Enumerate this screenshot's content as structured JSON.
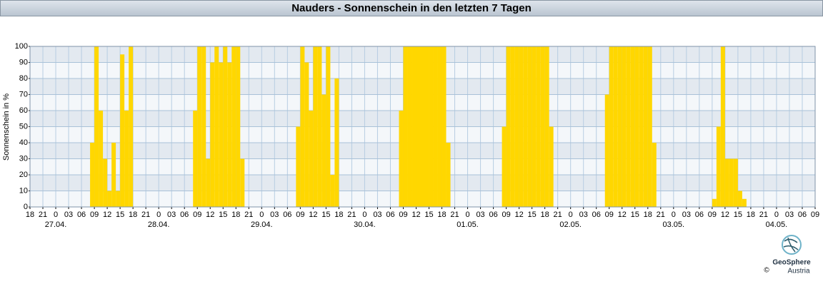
{
  "chart_data": {
    "type": "bar",
    "title": "Nauders - Sonnenschein in den letzten 7 Tagen",
    "y_label": "Sonnenschein in %",
    "x": [
      14,
      15,
      16,
      17,
      18,
      19,
      20,
      21,
      22,
      23,
      38,
      39,
      40,
      41,
      42,
      43,
      44,
      45,
      46,
      47,
      48,
      49,
      62,
      63,
      64,
      65,
      66,
      67,
      68,
      69,
      70,
      71,
      86,
      87,
      88,
      89,
      90,
      91,
      92,
      93,
      94,
      95,
      96,
      97,
      110,
      111,
      112,
      113,
      114,
      115,
      116,
      117,
      118,
      119,
      120,
      121,
      134,
      135,
      136,
      137,
      138,
      139,
      140,
      141,
      142,
      143,
      144,
      145,
      159,
      160,
      161,
      162,
      163,
      164,
      165,
      166
    ],
    "values": [
      40,
      100,
      60,
      30,
      10,
      40,
      10,
      95,
      60,
      100,
      60,
      100,
      100,
      30,
      90,
      100,
      90,
      100,
      90,
      100,
      100,
      30,
      50,
      100,
      90,
      60,
      100,
      100,
      70,
      100,
      20,
      80,
      60,
      100,
      100,
      100,
      100,
      100,
      100,
      100,
      100,
      100,
      100,
      40,
      50,
      100,
      100,
      100,
      100,
      100,
      100,
      100,
      100,
      100,
      100,
      50,
      70,
      100,
      100,
      100,
      100,
      100,
      100,
      100,
      100,
      100,
      100,
      40,
      5,
      50,
      100,
      30,
      30,
      30,
      10,
      5
    ],
    "color": "#ffd700",
    "xlim": [
      0,
      183
    ],
    "xticks": [
      {
        "value": 0,
        "label": "18"
      },
      {
        "value": 3,
        "label": "21"
      },
      {
        "value": 6,
        "label": "0"
      },
      {
        "value": 9,
        "label": "03"
      },
      {
        "value": 12,
        "label": "06"
      },
      {
        "value": 15,
        "label": "09"
      },
      {
        "value": 18,
        "label": "12"
      },
      {
        "value": 21,
        "label": "15"
      },
      {
        "value": 24,
        "label": "18"
      },
      {
        "value": 27,
        "label": "21"
      },
      {
        "value": 30,
        "label": "0"
      },
      {
        "value": 33,
        "label": "03"
      },
      {
        "value": 36,
        "label": "06"
      },
      {
        "value": 39,
        "label": "09"
      },
      {
        "value": 42,
        "label": "12"
      },
      {
        "value": 45,
        "label": "15"
      },
      {
        "value": 48,
        "label": "18"
      },
      {
        "value": 51,
        "label": "21"
      },
      {
        "value": 54,
        "label": "0"
      },
      {
        "value": 57,
        "label": "03"
      },
      {
        "value": 60,
        "label": "06"
      },
      {
        "value": 63,
        "label": "09"
      },
      {
        "value": 66,
        "label": "12"
      },
      {
        "value": 69,
        "label": "15"
      },
      {
        "value": 72,
        "label": "18"
      },
      {
        "value": 75,
        "label": "21"
      },
      {
        "value": 78,
        "label": "0"
      },
      {
        "value": 81,
        "label": "03"
      },
      {
        "value": 84,
        "label": "06"
      },
      {
        "value": 87,
        "label": "09"
      },
      {
        "value": 90,
        "label": "12"
      },
      {
        "value": 93,
        "label": "15"
      },
      {
        "value": 96,
        "label": "18"
      },
      {
        "value": 99,
        "label": "21"
      },
      {
        "value": 102,
        "label": "0"
      },
      {
        "value": 105,
        "label": "03"
      },
      {
        "value": 108,
        "label": "06"
      },
      {
        "value": 111,
        "label": "09"
      },
      {
        "value": 114,
        "label": "12"
      },
      {
        "value": 117,
        "label": "15"
      },
      {
        "value": 120,
        "label": "18"
      },
      {
        "value": 123,
        "label": "21"
      },
      {
        "value": 126,
        "label": "0"
      },
      {
        "value": 129,
        "label": "03"
      },
      {
        "value": 132,
        "label": "06"
      },
      {
        "value": 135,
        "label": "09"
      },
      {
        "value": 138,
        "label": "12"
      },
      {
        "value": 141,
        "label": "15"
      },
      {
        "value": 144,
        "label": "18"
      },
      {
        "value": 147,
        "label": "21"
      },
      {
        "value": 150,
        "label": "0"
      },
      {
        "value": 153,
        "label": "03"
      },
      {
        "value": 156,
        "label": "06"
      },
      {
        "value": 159,
        "label": "09"
      },
      {
        "value": 162,
        "label": "12"
      },
      {
        "value": 165,
        "label": "15"
      },
      {
        "value": 168,
        "label": "18"
      },
      {
        "value": 171,
        "label": "21"
      },
      {
        "value": 174,
        "label": "0"
      },
      {
        "value": 177,
        "label": "03"
      },
      {
        "value": 180,
        "label": "06"
      },
      {
        "value": 183,
        "label": "09"
      }
    ],
    "date_labels": [
      {
        "value": 6,
        "label": "27.04."
      },
      {
        "value": 30,
        "label": "28.04."
      },
      {
        "value": 54,
        "label": "29.04."
      },
      {
        "value": 78,
        "label": "30.04."
      },
      {
        "value": 102,
        "label": "01.05."
      },
      {
        "value": 126,
        "label": "02.05."
      },
      {
        "value": 150,
        "label": "03.05."
      },
      {
        "value": 174,
        "label": "04.05."
      }
    ],
    "ylim": [
      0,
      100
    ],
    "yticks": [
      0,
      10,
      20,
      30,
      40,
      50,
      60,
      70,
      80,
      90,
      100
    ],
    "grid": true
  },
  "logo": {
    "name": "GeoSphere",
    "sub": "Austria",
    "copyright": "©"
  }
}
